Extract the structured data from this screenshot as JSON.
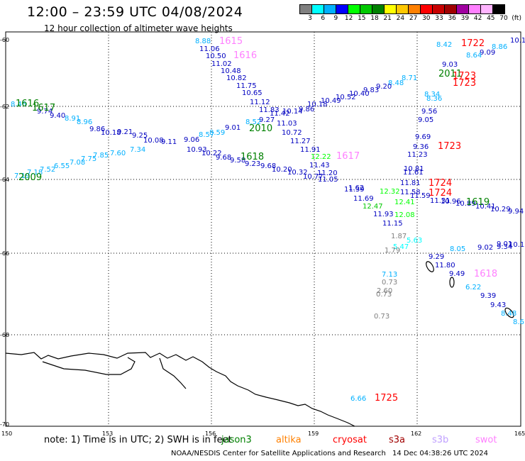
{
  "title": "12:00 – 23:59 UTC 04/08/2024",
  "subtitle": "12 hour collection of altimeter wave heights",
  "colorbar": {
    "colors": [
      "#808080",
      "#00ffff",
      "#00b0ff",
      "#0000ff",
      "#00ff00",
      "#00c800",
      "#008000",
      "#ffff00",
      "#ffc800",
      "#ff8000",
      "#ff0000",
      "#c80000",
      "#a00000",
      "#a000a0",
      "#ff80ff",
      "#ffb4ff",
      "#000000"
    ],
    "labels": [
      "3",
      "6",
      "9",
      "12",
      "15",
      "18",
      "21",
      "24",
      "27",
      "30",
      "33",
      "36",
      "39",
      "42",
      "45",
      "70",
      "(ft)"
    ]
  },
  "axes": {
    "lon_ticks": [
      "150",
      "153",
      "156",
      "159",
      "162",
      "165"
    ],
    "lat_ticks": [
      "-60",
      "-62",
      "-64",
      "-66",
      "-68",
      "-70"
    ]
  },
  "legend": {
    "note": "note:  1) Time is in UTC; 2) SWH is in feet",
    "satellites": [
      {
        "name": "jason3",
        "color": "#008000"
      },
      {
        "name": "altika",
        "color": "#ff8000"
      },
      {
        "name": "cryosat",
        "color": "#ff0000"
      },
      {
        "name": "s3a",
        "color": "#a00000"
      },
      {
        "name": "s3b",
        "color": "#c0a0ff"
      },
      {
        "name": "swot",
        "color": "#ff80ff"
      }
    ]
  },
  "footer": {
    "credit": "NOAA/NESDIS Center for Satellite Applications and Research",
    "date": "14 Dec 04:38:26 UTC 2024"
  },
  "time_labels": [
    {
      "t": "1615",
      "c": "#ff80ff"
    },
    {
      "t": "1616",
      "c": "#ff80ff"
    },
    {
      "t": "1722",
      "c": "#ff0000"
    },
    {
      "t": "2011",
      "c": "#008000"
    },
    {
      "t": "1723",
      "c": "#ff0000"
    },
    {
      "t": "1723",
      "c": "#ff0000"
    },
    {
      "t": "1616",
      "c": "#008000"
    },
    {
      "t": "1617",
      "c": "#008000"
    },
    {
      "t": "2010",
      "c": "#008000"
    },
    {
      "t": "1618",
      "c": "#008000"
    },
    {
      "t": "1617",
      "c": "#ff80ff"
    },
    {
      "t": "1723",
      "c": "#ff0000"
    },
    {
      "t": "2009",
      "c": "#008000"
    },
    {
      "t": "1724",
      "c": "#ff0000"
    },
    {
      "t": "1724",
      "c": "#ff0000"
    },
    {
      "t": "1619",
      "c": "#008000"
    },
    {
      "t": "1618",
      "c": "#ff80ff"
    },
    {
      "t": "1725",
      "c": "#ff0000"
    }
  ],
  "wave_values": [
    {
      "t": "8.88",
      "c": "#00b0ff"
    },
    {
      "t": "11.06",
      "c": "#0000c0"
    },
    {
      "t": "10.50",
      "c": "#0000c0"
    },
    {
      "t": "11.02",
      "c": "#0000c0"
    },
    {
      "t": "10.48",
      "c": "#0000c0"
    },
    {
      "t": "10.82",
      "c": "#0000c0"
    },
    {
      "t": "11.75",
      "c": "#0000c0"
    },
    {
      "t": "10.65",
      "c": "#0000c0"
    },
    {
      "t": "11.12",
      "c": "#0000c0"
    },
    {
      "t": "11.83",
      "c": "#0000c0"
    },
    {
      "t": "11.42",
      "c": "#0000c0"
    },
    {
      "t": "11.03",
      "c": "#0000c0"
    },
    {
      "t": "10.72",
      "c": "#0000c0"
    },
    {
      "t": "11.27",
      "c": "#0000c0"
    },
    {
      "t": "11.91",
      "c": "#0000c0"
    },
    {
      "t": "11.43",
      "c": "#0000c0"
    },
    {
      "t": "11.20",
      "c": "#0000c0"
    },
    {
      "t": "11.39",
      "c": "#0000c0"
    },
    {
      "t": "11.69",
      "c": "#0000c0"
    },
    {
      "t": "11.93",
      "c": "#0000c0"
    },
    {
      "t": "8.42",
      "c": "#00b0ff"
    },
    {
      "t": "10.1",
      "c": "#0000c0"
    },
    {
      "t": "9.09",
      "c": "#0000c0"
    },
    {
      "t": "8.86",
      "c": "#00b0ff"
    },
    {
      "t": "8.64",
      "c": "#00b0ff"
    },
    {
      "t": "9.03",
      "c": "#0000c0"
    },
    {
      "t": "8.71",
      "c": "#00b0ff"
    },
    {
      "t": "8.48",
      "c": "#00b0ff"
    },
    {
      "t": "9.20",
      "c": "#0000c0"
    },
    {
      "t": "9.83",
      "c": "#0000c0"
    },
    {
      "t": "10.40",
      "c": "#0000c0"
    },
    {
      "t": "10.52",
      "c": "#0000c0"
    },
    {
      "t": "10.49",
      "c": "#0000c0"
    },
    {
      "t": "10.18",
      "c": "#0000c0"
    },
    {
      "t": "9.86",
      "c": "#0000c0"
    },
    {
      "t": "10.14",
      "c": "#0000c0"
    },
    {
      "t": "9.27",
      "c": "#0000c0"
    },
    {
      "t": "8.52",
      "c": "#00b0ff"
    },
    {
      "t": "9.01",
      "c": "#0000c0"
    },
    {
      "t": "8.59",
      "c": "#00b0ff"
    },
    {
      "t": "8.57",
      "c": "#00b0ff"
    },
    {
      "t": "9.06",
      "c": "#0000c0"
    },
    {
      "t": "8.46",
      "c": "#00b0ff"
    },
    {
      "t": "9.74",
      "c": "#0000c0"
    },
    {
      "t": "9.40",
      "c": "#0000c0"
    },
    {
      "t": "8.91",
      "c": "#00b0ff"
    },
    {
      "t": "8.96",
      "c": "#00b0ff"
    },
    {
      "t": "9.86",
      "c": "#0000c0"
    },
    {
      "t": "10.18",
      "c": "#0000c0"
    },
    {
      "t": "9.21",
      "c": "#0000c0"
    },
    {
      "t": "9.25",
      "c": "#0000c0"
    },
    {
      "t": "10.08",
      "c": "#0000c0"
    },
    {
      "t": "9.11",
      "c": "#0000c0"
    },
    {
      "t": "10.93",
      "c": "#0000c0"
    },
    {
      "t": "10.22",
      "c": "#0000c0"
    },
    {
      "t": "9.68",
      "c": "#0000c0"
    },
    {
      "t": "9.58",
      "c": "#0000c0"
    },
    {
      "t": "9.23",
      "c": "#0000c0"
    },
    {
      "t": "9.68",
      "c": "#0000c0"
    },
    {
      "t": "10.20",
      "c": "#0000c0"
    },
    {
      "t": "10.32",
      "c": "#0000c0"
    },
    {
      "t": "10.77",
      "c": "#0000c0"
    },
    {
      "t": "11.05",
      "c": "#0000c0"
    },
    {
      "t": "7.19",
      "c": "#00b0ff"
    },
    {
      "t": "7.18",
      "c": "#00b0ff"
    },
    {
      "t": "7.52",
      "c": "#00b0ff"
    },
    {
      "t": "6.55",
      "c": "#00b0ff"
    },
    {
      "t": "7.08",
      "c": "#00b0ff"
    },
    {
      "t": "7.75",
      "c": "#00b0ff"
    },
    {
      "t": "7.85",
      "c": "#00b0ff"
    },
    {
      "t": "7.60",
      "c": "#00b0ff"
    },
    {
      "t": "7.34",
      "c": "#00b0ff"
    },
    {
      "t": "12.22",
      "c": "#00ff00"
    },
    {
      "t": "12.32",
      "c": "#00ff00"
    },
    {
      "t": "12.47",
      "c": "#00c800"
    },
    {
      "t": "12.08",
      "c": "#00ff00"
    },
    {
      "t": "12.41",
      "c": "#00ff00"
    },
    {
      "t": "11.15",
      "c": "#0000c0"
    },
    {
      "t": "8.34",
      "c": "#00b0ff"
    },
    {
      "t": "8.36",
      "c": "#00b0ff"
    },
    {
      "t": "9.56",
      "c": "#0000c0"
    },
    {
      "t": "9.05",
      "c": "#0000c0"
    },
    {
      "t": "9.69",
      "c": "#0000c0"
    },
    {
      "t": "9.36",
      "c": "#0000c0"
    },
    {
      "t": "11.23",
      "c": "#0000c0"
    },
    {
      "t": "10.81",
      "c": "#0000c0"
    },
    {
      "t": "11.61",
      "c": "#0000c0"
    },
    {
      "t": "11.81",
      "c": "#0000c0"
    },
    {
      "t": "11.58",
      "c": "#0000c0"
    },
    {
      "t": "11.59",
      "c": "#0000c0"
    },
    {
      "t": "11.31",
      "c": "#0000c0"
    },
    {
      "t": "10.96",
      "c": "#0000c0"
    },
    {
      "t": "10.89",
      "c": "#0000c0"
    },
    {
      "t": "10.41",
      "c": "#0000c0"
    },
    {
      "t": "10.29",
      "c": "#0000c0"
    },
    {
      "t": "9.94",
      "c": "#0000c0"
    },
    {
      "t": "1.87",
      "c": "#808080"
    },
    {
      "t": "5.63",
      "c": "#00ffff"
    },
    {
      "t": "5.47",
      "c": "#00ffff"
    },
    {
      "t": "1.79",
      "c": "#808080"
    },
    {
      "t": "9.02",
      "c": "#0000c0"
    },
    {
      "t": "9.34",
      "c": "#0000c0"
    },
    {
      "t": "9.01",
      "c": "#0000c0"
    },
    {
      "t": "10.1",
      "c": "#0000c0"
    },
    {
      "t": "9.29",
      "c": "#0000c0"
    },
    {
      "t": "11.80",
      "c": "#0000c0"
    },
    {
      "t": "7.13",
      "c": "#00b0ff"
    },
    {
      "t": "0.73",
      "c": "#808080"
    },
    {
      "t": "2.60",
      "c": "#808080"
    },
    {
      "t": "0.73",
      "c": "#808080"
    },
    {
      "t": "0.73",
      "c": "#808080"
    },
    {
      "t": "9.49",
      "c": "#0000c0"
    },
    {
      "t": "6.22",
      "c": "#00b0ff"
    },
    {
      "t": "9.39",
      "c": "#0000c0"
    },
    {
      "t": "9.43",
      "c": "#0000c0"
    },
    {
      "t": "8.48",
      "c": "#00b0ff"
    },
    {
      "t": "8.6",
      "c": "#00b0ff"
    },
    {
      "t": "6.66",
      "c": "#00b0ff"
    },
    {
      "t": "1.62",
      "c": "#0000c0"
    },
    {
      "t": "8.05",
      "c": "#00b0ff"
    }
  ]
}
